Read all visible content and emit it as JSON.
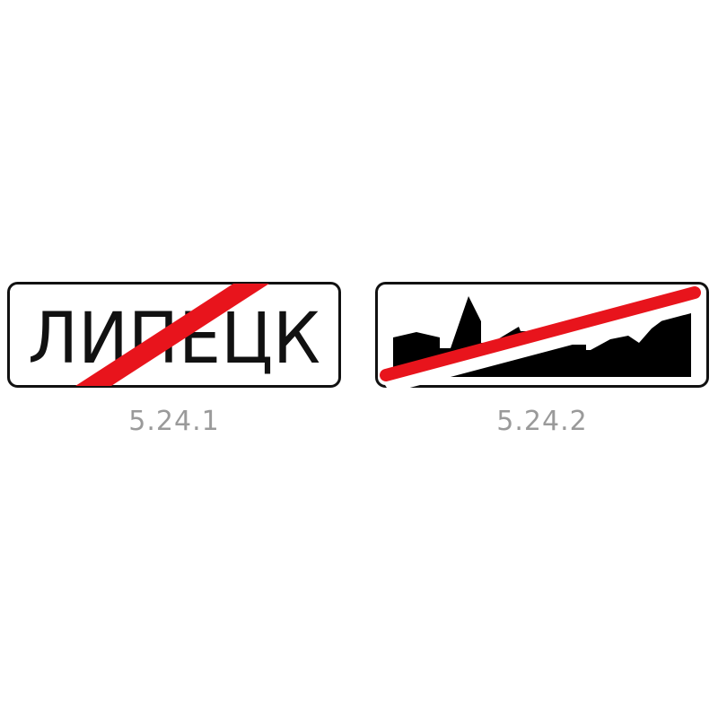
{
  "signs": [
    {
      "city_name": "ЛИПЕЦК",
      "caption": "5.24.1",
      "icon": "city-name-end-sign"
    },
    {
      "caption": "5.24.2",
      "icon": "settlement-silhouette-end-sign"
    }
  ],
  "colors": {
    "background": "#ffffff",
    "border": "#111111",
    "strike": "#e8141c",
    "silhouette": "#000000",
    "caption": "#9a9a9a"
  }
}
